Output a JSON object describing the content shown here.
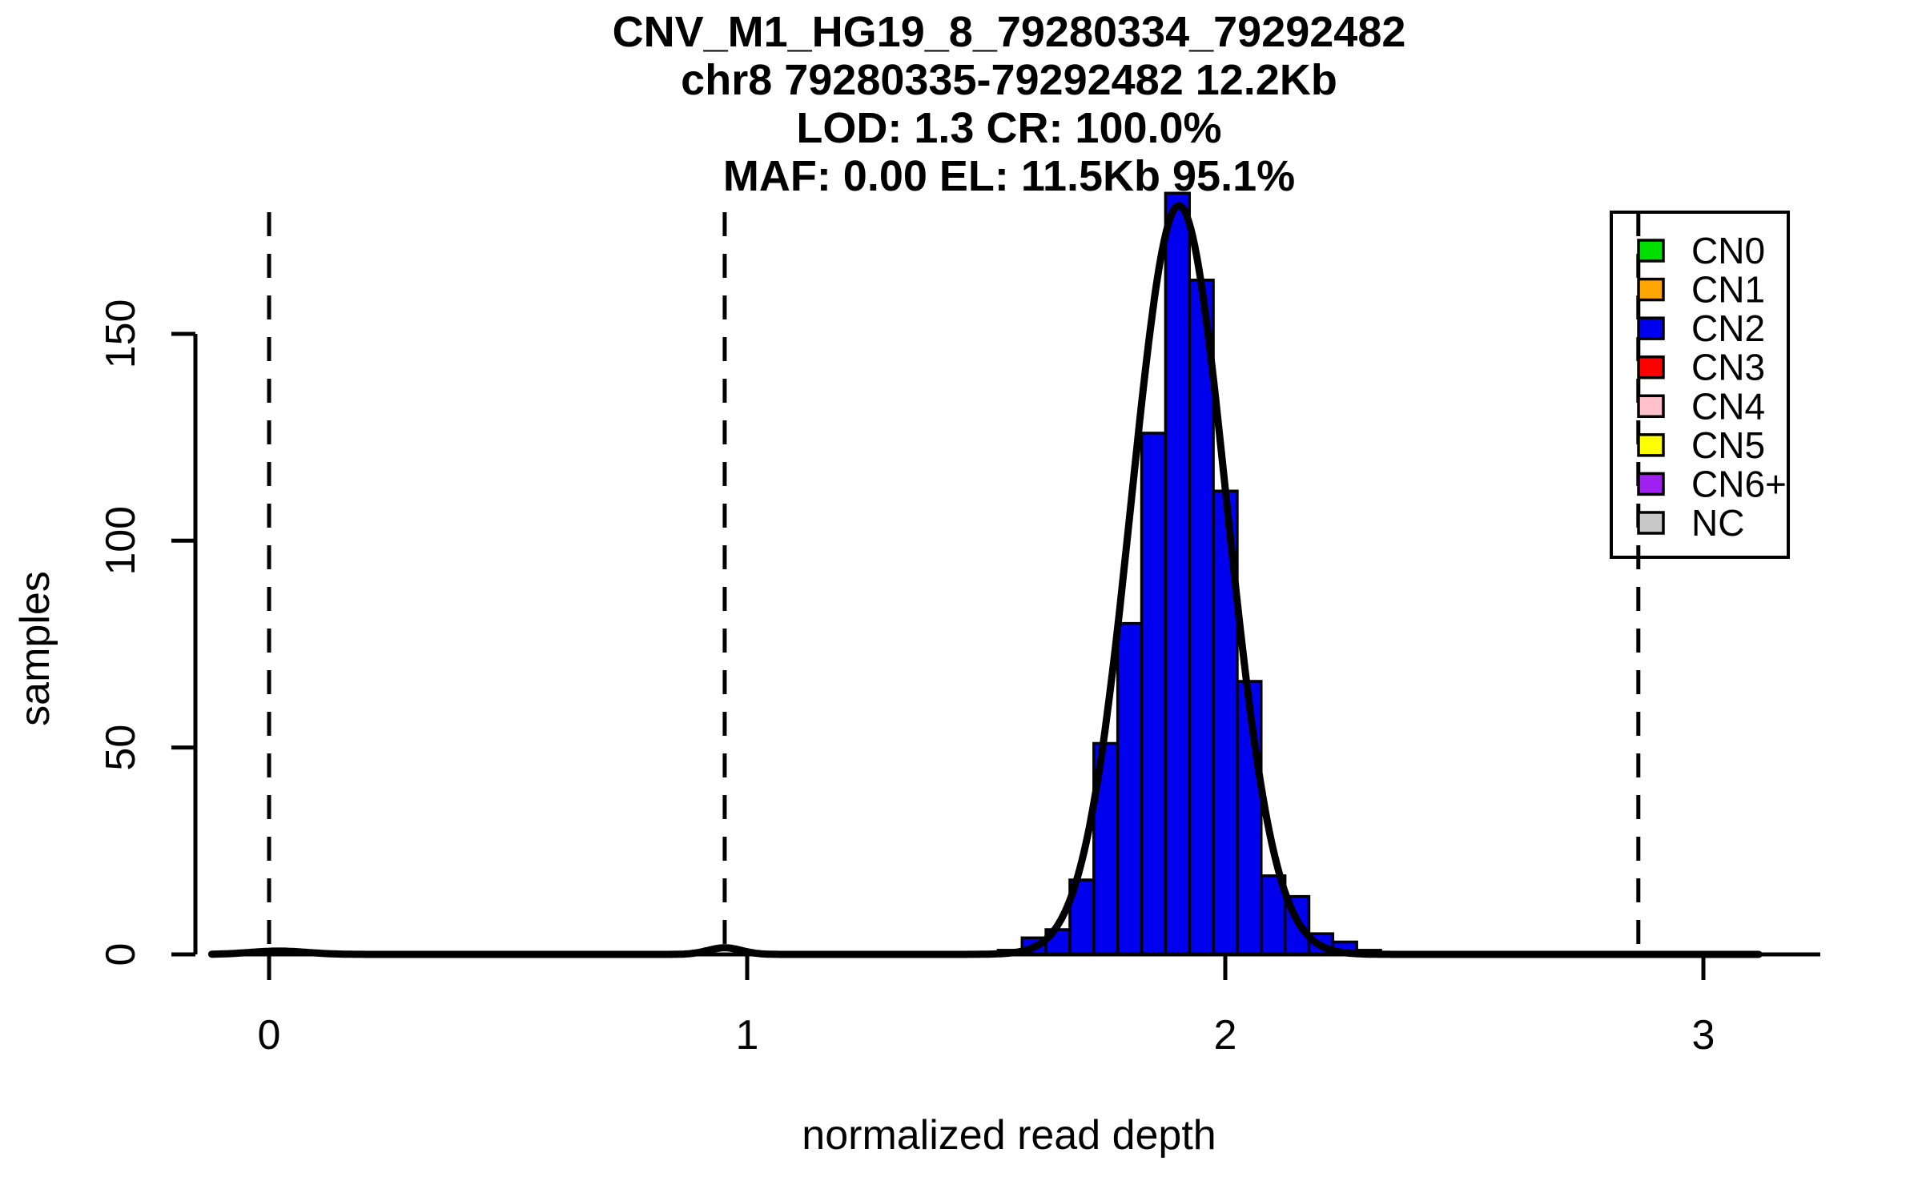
{
  "chart_data": {
    "type": "histogram",
    "title": {
      "line1": "CNV_M1_HG19_8_79280334_79292482",
      "line2": "chr8 79280335-79292482 12.2Kb",
      "line3": "LOD: 1.3 CR: 100.0%",
      "line4": "MAF: 0.00 EL: 11.5Kb 95.1%"
    },
    "xlabel": "normalized read depth",
    "ylabel": "samples",
    "x_ticks": [
      0,
      1,
      2,
      3
    ],
    "y_ticks": [
      0,
      50,
      100,
      150
    ],
    "xlim": [
      -0.124,
      3.244
    ],
    "ylim": [
      0,
      186
    ],
    "grid": false,
    "bins": {
      "start": 1.525,
      "width": 0.05,
      "counts": [
        1,
        4,
        6,
        18,
        51,
        80,
        126,
        184,
        163,
        112,
        66,
        19,
        14,
        5,
        3,
        1
      ]
    },
    "total_samples": 853,
    "bar_fill": "#0000EE",
    "bar_border": "#000000",
    "fit_curve": {
      "color": "#000000",
      "x_range": [
        -0.12,
        3.12
      ],
      "components": [
        {
          "amplitude": 181,
          "mean": 1.903,
          "sd": 0.0995
        },
        {
          "amplitude": 1.6,
          "mean": 0.953,
          "sd": 0.035
        },
        {
          "amplitude": 0.8,
          "mean": 0.02,
          "sd": 0.06
        }
      ]
    },
    "dashed_vlines": [
      0,
      0.953,
      1.909,
      2.864
    ],
    "legend": {
      "position": "top-right",
      "items": [
        {
          "label": "CN0",
          "color": "#00E000"
        },
        {
          "label": "CN1",
          "color": "#FFA500"
        },
        {
          "label": "CN2",
          "color": "#0000EE"
        },
        {
          "label": "CN3",
          "color": "#FF0000"
        },
        {
          "label": "CN4",
          "color": "#FFC0CB"
        },
        {
          "label": "CN5",
          "color": "#FFFF00"
        },
        {
          "label": "CN6+",
          "color": "#A020F0"
        },
        {
          "label": "NC",
          "color": "#C8C8C8"
        }
      ]
    }
  }
}
